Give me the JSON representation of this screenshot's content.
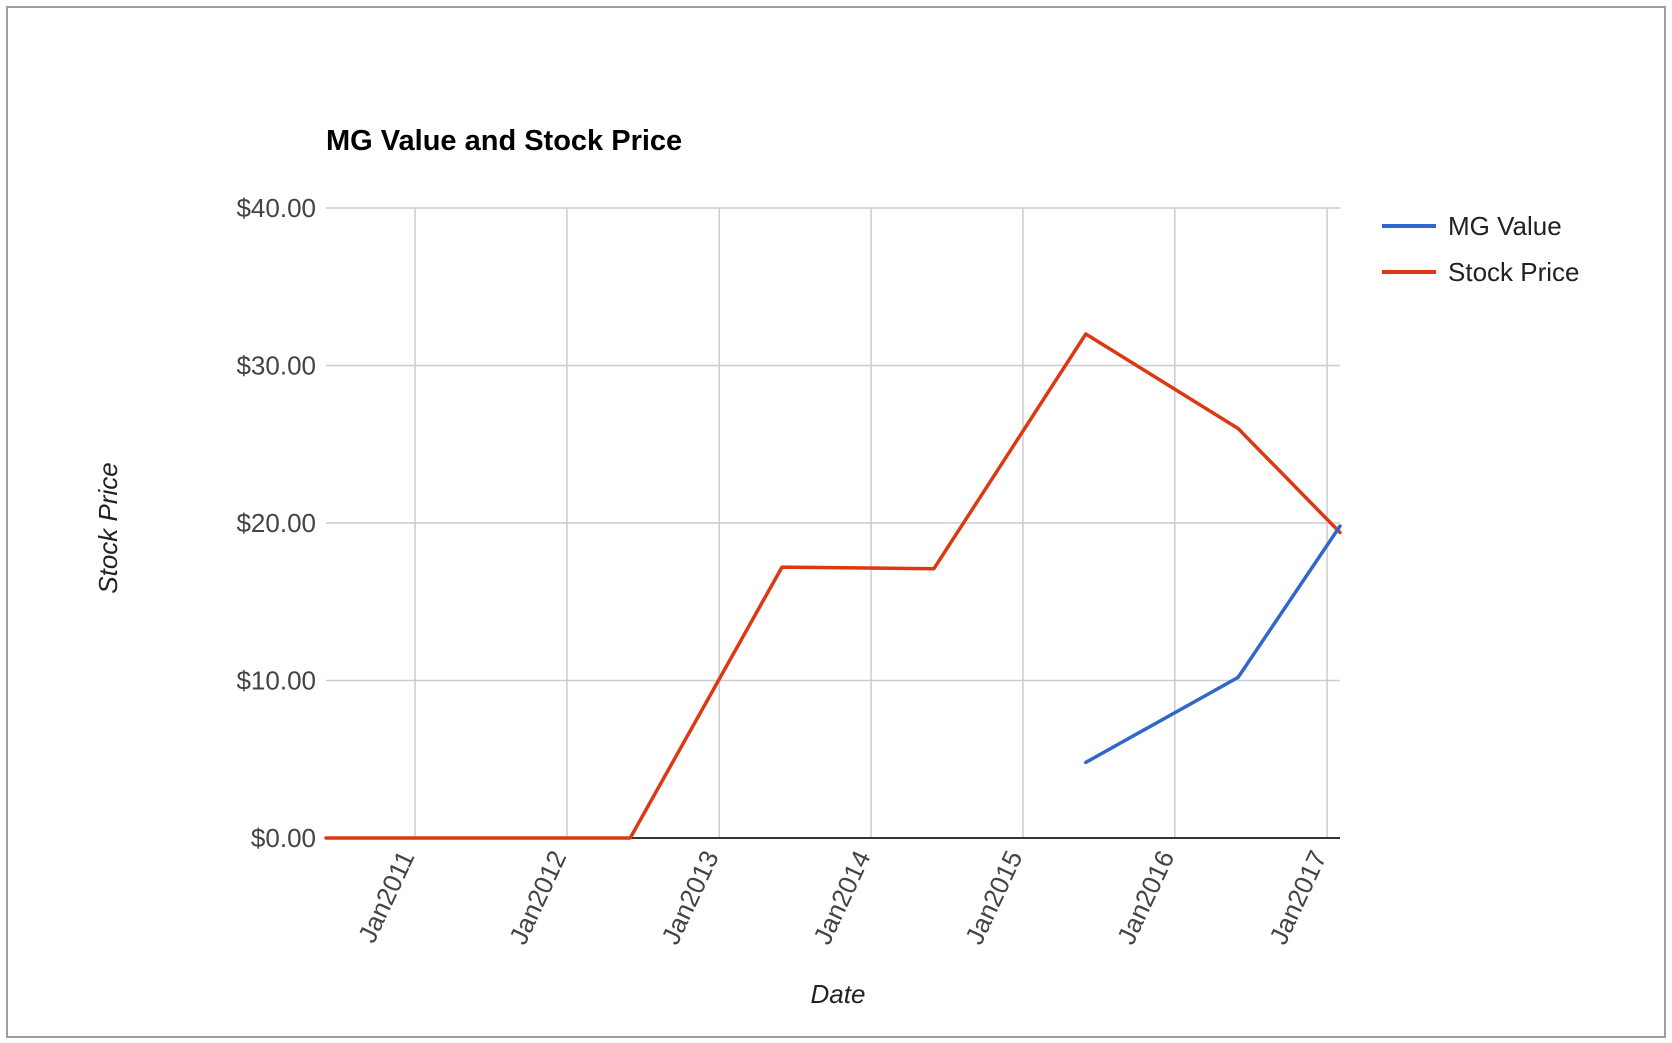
{
  "chart_data": {
    "type": "line",
    "title": "MG Value and Stock Price",
    "xlabel": "Date",
    "ylabel": "Stock Price",
    "x_tick_labels": [
      "Jan2011",
      "Jan2012",
      "Jan2013",
      "Jan2014",
      "Jan2015",
      "Jan2016",
      "Jan2017"
    ],
    "x_ticks": [
      "2011-01-01",
      "2012-01-01",
      "2013-01-01",
      "2014-01-01",
      "2015-01-01",
      "2016-01-01",
      "2017-01-01"
    ],
    "xlim": [
      "2010-06-01",
      "2017-02-01"
    ],
    "y_tick_labels": [
      "$0.00",
      "$10.00",
      "$20.00",
      "$30.00",
      "$40.00"
    ],
    "y_ticks": [
      0,
      10,
      20,
      30,
      40
    ],
    "ylim": [
      0,
      40
    ],
    "grid": true,
    "legend_position": "right",
    "series": [
      {
        "name": "MG Value",
        "color": "#3366cc",
        "points": [
          {
            "x": "2015-06-01",
            "y": 4.8
          },
          {
            "x": "2016-06-01",
            "y": 10.2
          },
          {
            "x": "2017-02-01",
            "y": 19.8
          }
        ]
      },
      {
        "name": "Stock Price",
        "color": "#dc3912",
        "points": [
          {
            "x": "2010-06-01",
            "y": 0
          },
          {
            "x": "2012-06-01",
            "y": 0
          },
          {
            "x": "2013-06-01",
            "y": 17.2
          },
          {
            "x": "2014-06-01",
            "y": 17.1
          },
          {
            "x": "2015-06-01",
            "y": 32.0
          },
          {
            "x": "2016-06-01",
            "y": 26.0
          },
          {
            "x": "2017-02-01",
            "y": 19.4
          }
        ]
      }
    ]
  }
}
